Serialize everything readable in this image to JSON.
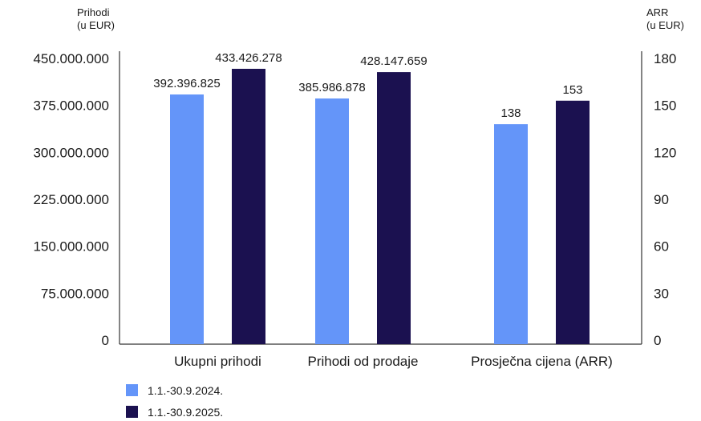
{
  "chart_data": {
    "type": "bar",
    "categories": [
      "Ukupni prihodi",
      "Prihodi od prodaje",
      "Prosječna cijena (ARR)"
    ],
    "series": [
      {
        "name": "1.1.-30.9.2024.",
        "color": "#6495f9",
        "values": [
          392396825,
          385986878,
          138
        ],
        "labels": [
          "392.396.825",
          "385.986.878",
          "138"
        ]
      },
      {
        "name": "1.1.-30.9.2025.",
        "color": "#1b1150",
        "values": [
          433426278,
          428147659,
          153
        ],
        "labels": [
          "433.426.278",
          "428.147.659",
          "153"
        ]
      }
    ],
    "series_axis": [
      "left",
      "left",
      "right"
    ],
    "left_axis": {
      "title_line1": "Prihodi",
      "title_line2": "(u EUR)",
      "ylim": [
        0,
        450000000
      ],
      "ticks": [
        0,
        75000000,
        150000000,
        225000000,
        300000000,
        375000000,
        450000000
      ],
      "tick_labels": [
        "0",
        "75.000.000",
        "150.000.000",
        "225.000.000",
        "300.000.000",
        "375.000.000",
        "450.000.000"
      ]
    },
    "right_axis": {
      "title_line1": "ARR",
      "title_line2": "(u EUR)",
      "ylim": [
        0,
        180
      ],
      "ticks": [
        0,
        30,
        60,
        90,
        120,
        150,
        180
      ],
      "tick_labels": [
        "0",
        "30",
        "60",
        "90",
        "120",
        "150",
        "180"
      ]
    },
    "grid": false,
    "legend": "bottom-left"
  }
}
